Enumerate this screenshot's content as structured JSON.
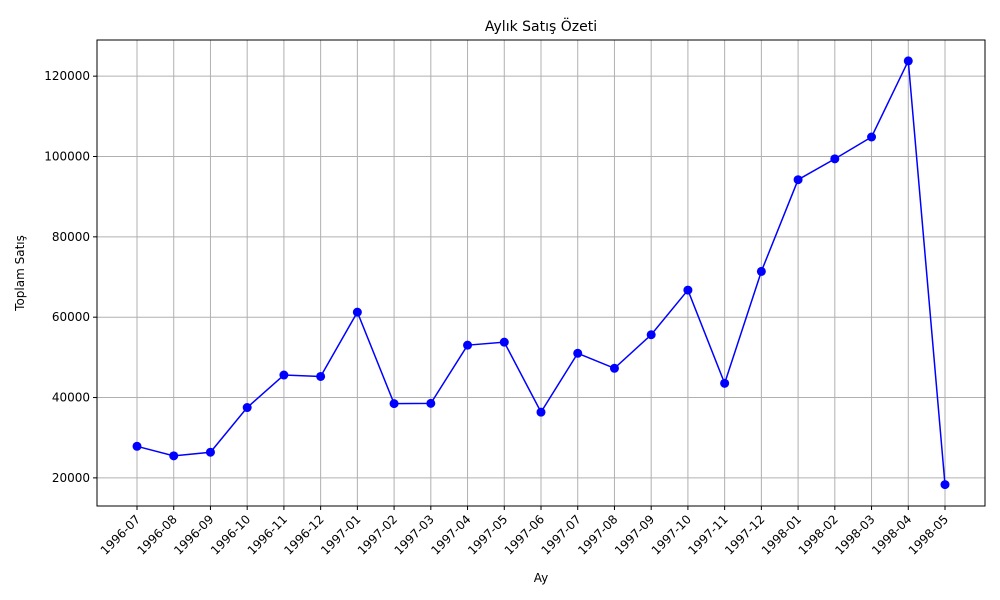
{
  "chart_data": {
    "type": "line",
    "title": "Aylık Satış Özeti",
    "xlabel": "Ay",
    "ylabel": "Toplam Satış",
    "grid": true,
    "series_color": "#0000ff",
    "categories": [
      "1996-07",
      "1996-08",
      "1996-09",
      "1996-10",
      "1996-11",
      "1996-12",
      "1997-01",
      "1997-02",
      "1997-03",
      "1997-04",
      "1997-05",
      "1997-06",
      "1997-07",
      "1997-08",
      "1997-09",
      "1997-10",
      "1997-11",
      "1997-12",
      "1998-01",
      "1998-02",
      "1998-03",
      "1998-04",
      "1998-05"
    ],
    "values": [
      27862,
      25486,
      26382,
      37516,
      45600,
      45240,
      61258,
      38484,
      38547,
      53033,
      53781,
      36363,
      51020,
      47288,
      55629,
      66750,
      43534,
      71398,
      94223,
      99415,
      104854,
      123799,
      18334
    ],
    "ylim": [
      13000,
      129000
    ],
    "yticks": [
      20000,
      40000,
      60000,
      80000,
      100000,
      120000
    ]
  }
}
